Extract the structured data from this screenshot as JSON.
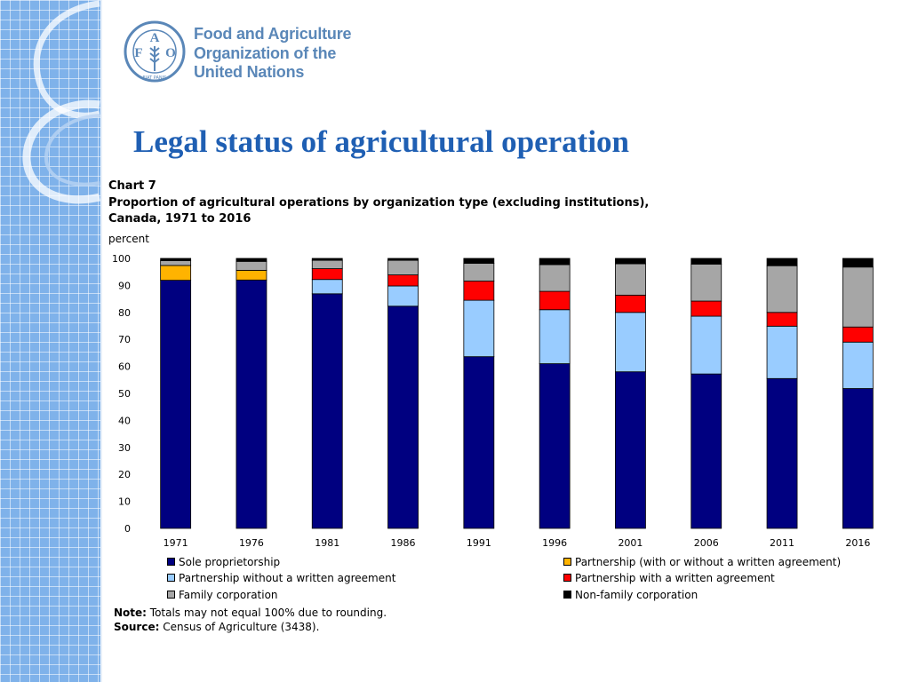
{
  "org": {
    "name_lines": [
      "Food and Agriculture",
      "Organization of the",
      "United Nations"
    ],
    "logo_letters": [
      "F",
      "A",
      "O"
    ],
    "logo_motto": "FIAT PANIS"
  },
  "slide": {
    "title": "Legal status of agricultural operation"
  },
  "chart_header": {
    "label": "Chart 7",
    "title_line1": "Proportion of agricultural operations by organization type (excluding institutions),",
    "title_line2": "Canada, 1971 to 2016",
    "y_unit": "percent"
  },
  "chart_data": {
    "type": "bar",
    "stacked": true,
    "label": "Chart 7",
    "title": "Proportion of agricultural operations by organization type (excluding institutions), Canada, 1971 to 2016",
    "ylabel": "percent",
    "xlabel": "",
    "ylim": [
      0,
      100
    ],
    "yticks": [
      0,
      10,
      20,
      30,
      40,
      50,
      60,
      70,
      80,
      90,
      100
    ],
    "grid": false,
    "legend_position": "bottom",
    "categories": [
      "1971",
      "1976",
      "1981",
      "1986",
      "1991",
      "1996",
      "2001",
      "2006",
      "2011",
      "2016"
    ],
    "series": [
      {
        "name": "Sole proprietorship",
        "color": "#000080",
        "values": [
          91.9,
          92.0,
          86.9,
          82.3,
          63.6,
          61.0,
          58.0,
          57.2,
          55.5,
          51.8
        ]
      },
      {
        "name": "Partnership without a written agreement",
        "color": "#99ccff",
        "values": [
          0.0,
          0.0,
          5.3,
          7.5,
          20.9,
          20.0,
          22.0,
          21.4,
          19.4,
          17.2
        ]
      },
      {
        "name": "Partnership (with or without a written agreement)",
        "color": "#ffb300",
        "values": [
          5.5,
          3.6,
          0.0,
          0.0,
          0.0,
          0.0,
          0.0,
          0.0,
          0.0,
          0.0
        ]
      },
      {
        "name": "Partnership with a written agreement",
        "color": "#ff0000",
        "values": [
          0.0,
          0.0,
          4.0,
          4.1,
          7.1,
          6.8,
          6.4,
          5.6,
          5.1,
          5.6
        ]
      },
      {
        "name": "Family corporation",
        "color": "#a6a6a6",
        "values": [
          1.8,
          3.3,
          3.1,
          5.4,
          6.6,
          9.9,
          11.6,
          13.7,
          17.3,
          22.2
        ]
      },
      {
        "name": "Non-family corporation",
        "color": "#000000",
        "values": [
          0.8,
          1.1,
          0.7,
          0.7,
          1.8,
          2.3,
          2.0,
          2.1,
          2.7,
          3.2
        ]
      }
    ]
  },
  "legend": [
    {
      "label": "Sole proprietorship",
      "color": "#000080"
    },
    {
      "label": "Partnership (with or without a written agreement)",
      "color": "#ffb300"
    },
    {
      "label": "Partnership without a written agreement",
      "color": "#99ccff"
    },
    {
      "label": "Partnership with a written agreement",
      "color": "#ff0000"
    },
    {
      "label": "Family corporation",
      "color": "#a6a6a6"
    },
    {
      "label": "Non-family corporation",
      "color": "#000000"
    }
  ],
  "notes": {
    "note_label": "Note:",
    "note_text": " Totals may not equal 100% due to rounding.",
    "source_label": "Source:",
    "source_text": " Census of Agriculture (3438)."
  }
}
